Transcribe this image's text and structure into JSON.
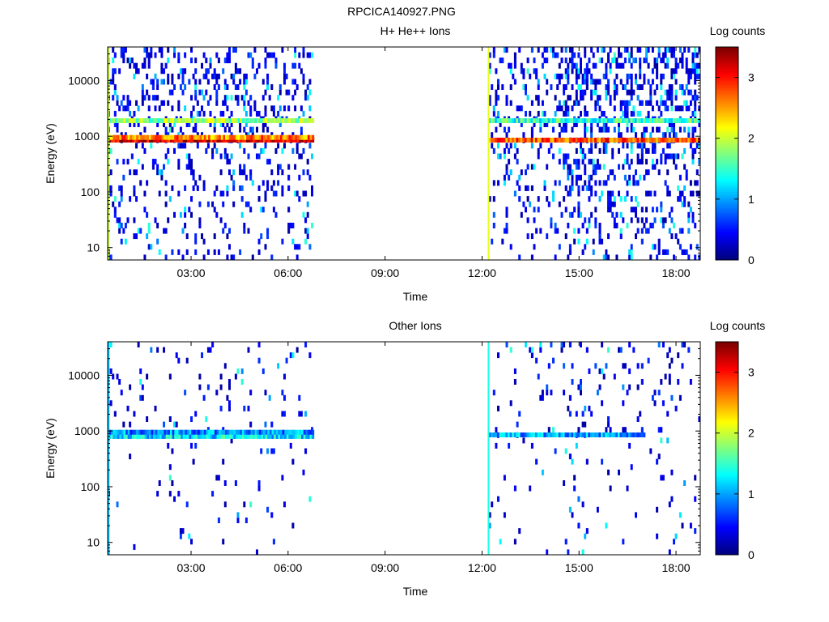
{
  "figure_title": "RPCICA140927.PNG",
  "chart_data": [
    {
      "type": "heatmap",
      "title": "H+ He++ Ions",
      "xlabel": "Time",
      "ylabel": "Energy (eV)",
      "y_scale": "log",
      "ylim": [
        6,
        40000
      ],
      "xlim_hours": [
        0.42,
        18.75
      ],
      "x_ticks": [
        "03:00",
        "06:00",
        "09:00",
        "12:00",
        "15:00",
        "18:00"
      ],
      "y_ticks": [
        "10",
        "100",
        "1000",
        "10000"
      ],
      "colorbar": {
        "label": "Log counts",
        "range": [
          0,
          3.5
        ],
        "ticks": [
          "0",
          "1",
          "2",
          "3"
        ]
      },
      "data_gaps": [
        [
          6.75,
          12.2
        ]
      ],
      "bands": [
        {
          "energy_eV": 850,
          "level": 3.2,
          "t_start": 0.45,
          "t_end": 6.75
        },
        {
          "energy_eV": 950,
          "level": 2.6,
          "t_start": 0.45,
          "t_end": 6.75
        },
        {
          "energy_eV": 1900,
          "level": 1.8,
          "t_start": 0.45,
          "t_end": 6.75
        },
        {
          "energy_eV": 850,
          "level": 2.8,
          "t_start": 12.2,
          "t_end": 18.75
        },
        {
          "energy_eV": 1900,
          "level": 1.5,
          "t_start": 12.2,
          "t_end": 18.75
        }
      ],
      "vertical_lines": [
        {
          "time_h": 12.2,
          "level": 2.1
        },
        {
          "time_h": 0.45,
          "level": 2.0
        }
      ]
    },
    {
      "type": "heatmap",
      "title": "Other Ions",
      "xlabel": "Time",
      "ylabel": "Energy (eV)",
      "y_scale": "log",
      "ylim": [
        6,
        40000
      ],
      "xlim_hours": [
        0.42,
        18.75
      ],
      "x_ticks": [
        "03:00",
        "06:00",
        "09:00",
        "12:00",
        "15:00",
        "18:00"
      ],
      "y_ticks": [
        "10",
        "100",
        "1000",
        "10000"
      ],
      "colorbar": {
        "label": "Log counts",
        "range": [
          0,
          3.5
        ],
        "ticks": [
          "0",
          "1",
          "2",
          "3"
        ]
      },
      "data_gaps": [
        [
          6.75,
          12.2
        ]
      ],
      "bands": [
        {
          "energy_eV": 800,
          "level": 1.2,
          "t_start": 0.45,
          "t_end": 6.75
        },
        {
          "energy_eV": 950,
          "level": 0.9,
          "t_start": 0.45,
          "t_end": 6.75
        },
        {
          "energy_eV": 850,
          "level": 1.0,
          "t_start": 12.2,
          "t_end": 17.0
        }
      ],
      "vertical_lines": [
        {
          "time_h": 12.2,
          "level": 1.4
        },
        {
          "time_h": 0.45,
          "level": 1.1
        }
      ]
    }
  ]
}
